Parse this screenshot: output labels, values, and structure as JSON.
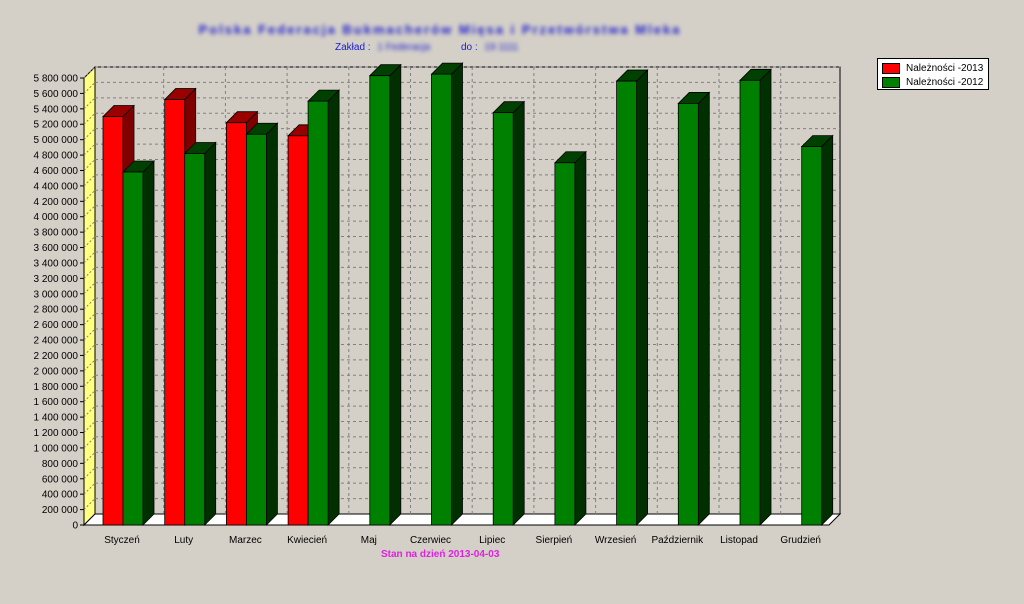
{
  "header": {
    "title": "Polska Federacja Bukmacherów Mięsa i Przetwórstwa Mleka",
    "zaklad_label": "Zakład :",
    "zaklad_value": "1 Federacja",
    "do_label": "do :",
    "do_value": "19 1111"
  },
  "footer": {
    "stan_label": "Stan na dzień 2013-04-03"
  },
  "colors": {
    "background": "#d4d0c8",
    "series_2013": "#ff0000",
    "series_2012": "#008000",
    "wall_left": "#ffff80",
    "floor": "#ffffff",
    "title": "#2222cc",
    "footer": "#e020e0"
  },
  "chart_data": {
    "type": "bar",
    "categories": [
      "Styczeń",
      "Luty",
      "Marzec",
      "Kwiecień",
      "Maj",
      "Czerwiec",
      "Lipiec",
      "Sierpień",
      "Wrzesień",
      "Październik",
      "Listopad",
      "Grudzień"
    ],
    "series": [
      {
        "name": "Należności -2013",
        "values": [
          5300000,
          5520000,
          5220000,
          5050000,
          null,
          null,
          null,
          null,
          null,
          null,
          null,
          null
        ]
      },
      {
        "name": "Należności -2012",
        "values": [
          4580000,
          4820000,
          5070000,
          5500000,
          5830000,
          5850000,
          5350000,
          4700000,
          5760000,
          5470000,
          5770000,
          4910000
        ]
      }
    ],
    "ylim": [
      0,
      5800000
    ],
    "ytick_step": 200000,
    "ytick_labels": [
      "0",
      "200 000",
      "400 000",
      "600 000",
      "800 000",
      "1 000 000",
      "1 200 000",
      "1 400 000",
      "1 600 000",
      "1 800 000",
      "2 000 000",
      "2 200 000",
      "2 400 000",
      "2 600 000",
      "2 800 000",
      "3 000 000",
      "3 200 000",
      "3 400 000",
      "3 600 000",
      "3 800 000",
      "4 000 000",
      "4 200 000",
      "4 400 000",
      "4 600 000",
      "4 800 000",
      "5 000 000",
      "5 200 000",
      "5 400 000",
      "5 600 000",
      "5 800 000"
    ],
    "grid": true,
    "legend_position": "top-right",
    "three_d": true
  }
}
